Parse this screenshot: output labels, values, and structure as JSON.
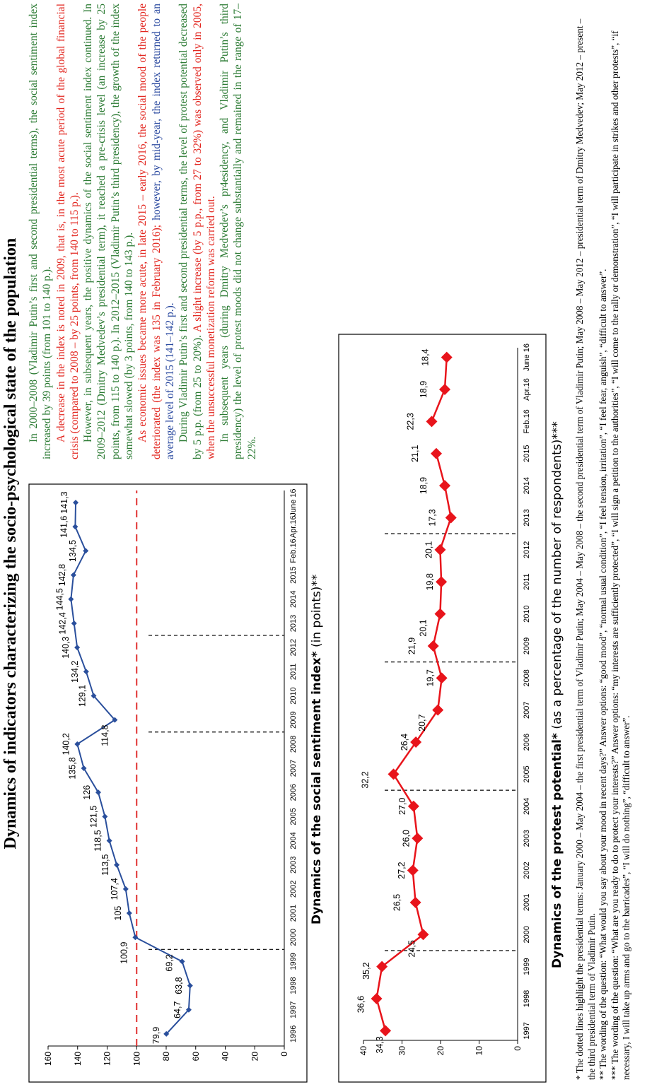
{
  "page": {
    "title": "Dynamics of indicators characterizing the socio-psychological state of the population"
  },
  "chart1_caption": {
    "bold": "Dynamics of the social sentiment index*",
    "normal": " (in points)**"
  },
  "chart2_caption": {
    "bold": "Dynamics of the protest potential*",
    "normal": " (as a percentage of the number of respondents)***"
  },
  "chart_data": [
    {
      "type": "line",
      "title": "Dynamics of the social sentiment index* (in points)**",
      "categories": [
        "1996",
        "1997",
        "1998",
        "1999",
        "2000",
        "2001",
        "2002",
        "2003",
        "2004",
        "2005",
        "2006",
        "2007",
        "2008",
        "2009",
        "2010",
        "2011",
        "2012",
        "2013",
        "2014",
        "2015",
        "Feb.16",
        "Apr.16",
        "June 16"
      ],
      "series": [
        {
          "values": [
            79.9,
            64.7,
            63.8,
            69.2,
            100.9,
            105,
            107.4,
            113.5,
            118.5,
            121.5,
            126,
            135.8,
            140.2,
            114.8,
            129.1,
            134.2,
            140.3,
            142.4,
            144.5,
            142.8,
            134.5,
            141.6,
            141.3
          ]
        }
      ],
      "value_labels": [
        "79,9",
        "64,7",
        "63,8",
        "69,2",
        "100,9",
        "105",
        "107,4",
        "113,5",
        "118,5",
        "121,5",
        "126",
        "135,8",
        "140,2",
        "114,8",
        "129,1",
        "134,2",
        "140,3",
        "142,4",
        "144,5",
        "142,8",
        "134,5",
        "141,6",
        "141,3"
      ],
      "yticks": [
        "0",
        "20",
        "40",
        "60",
        "80",
        "100",
        "120",
        "140",
        "160"
      ],
      "ylim": [
        0,
        160
      ],
      "reference_line": 100,
      "dotted_after": [
        "1999",
        "2008",
        "2012"
      ],
      "colors": {
        "line": "#2a4f9c",
        "reference": "#e03030"
      }
    },
    {
      "type": "line",
      "title": "Dynamics of the protest potential* (as a percentage of the number of respondents)***",
      "categories": [
        "1997",
        "1998",
        "1999",
        "2000",
        "2001",
        "2002",
        "2003",
        "2004",
        "2005",
        "2006",
        "2007",
        "2008",
        "2009",
        "2010",
        "2011",
        "2012",
        "2013",
        "2014",
        "2015",
        "Feb.16",
        "Apr.16",
        "June 16"
      ],
      "series": [
        {
          "values": [
            34.3,
            36.6,
            35.2,
            24.5,
            26.5,
            27.2,
            26.0,
            27.0,
            32.2,
            26.4,
            20.7,
            19.7,
            21.9,
            20.1,
            19.8,
            20.1,
            17.3,
            18.9,
            21.1,
            22.3,
            18.9,
            18.4
          ]
        }
      ],
      "value_labels": [
        "34,3",
        "36,6",
        "35,2",
        "24,5",
        "26,5",
        "27,2",
        "26,0",
        "27,0",
        "32,2",
        "26,4",
        "20,7",
        "19,7",
        "21,9",
        "20,1",
        "19,8",
        "20,1",
        "17,3",
        "18,9",
        "21,1",
        "22,3",
        "18,9",
        "18,4"
      ],
      "yticks": [
        "0",
        "10",
        "20",
        "30",
        "40"
      ],
      "ylim": [
        0,
        40
      ],
      "dotted_after": [
        "1999",
        "2004",
        "2008",
        "2012"
      ],
      "gap_before": "Feb.16",
      "colors": {
        "line": "#e8141b"
      }
    }
  ],
  "text": {
    "p1": "In 2000–2008 (Vladimir Putin’s first and second presidential terms), the social sentiment index increased by 39 points (from 101 to 140 p.).",
    "p2": "A decrease in the index is noted in 2009, that is, in the most acute period of the global financial crisis (compared to 2008 – by 25 points, from 140 to 115 p.).",
    "p3": "However, in subsequent years, the positive dynamics of the social sentiment index continued. In 2009–2012 (Dmitry Medvedev’s presidential term), it reached a pre-crisis level (an increase by 25 points, from 115 to 140 p.). In 2012–2015 (Vladimir Putin’s third presidency), the growth of the index somewhat slowed (by 3 points, from 140 to 143 p.).",
    "p4_red": "As economic issues became more acute, in late 2015 – early 2016, the social mood of the people deteriorated (the index was 135 in February 2016);",
    "p4_blue": " however, by mid-year, the index returned to an average level of 2015 (141–142 p.).",
    "p5_green": "During Vladimir Putin’s first and second presidential terms, the level of protest potential decreased by 5 p.p. (from 25 to 20%).",
    "p5_red": " A slight increase (by 5 p.p., from 27 to 32%) was observed only in 2005, when the unsuccessful monetization reform was carried out.",
    "p6": "In subsequent years (during Dmitry Medvedev’s pr4esidency, and Vladimir Putin’s third presidency) the level of protest moods did not change substantially and remained in the range of 17–22%."
  },
  "notes": {
    "n1": "* The dotted lines highlight the presidential terms: January 2000 – May 2004 – the first presidential term of Vladimir Putin; May 2004 – May 2008 – the second presidential term of Vladimir Putin; May 2008 – May 2012 – presidential term of Dmitry Medvedev; May 2012 – present – the third presidential term of Vladimir Putin.",
    "n2": "** The wording of the question: “What would you say about your mood in recent days?” Answer options: “good mood”, “normal usual condition”, “I feel tension, irritation”, “I feel fear, anguish”, “difficult to answer”.",
    "n3": "*** The wording of the question: “What are you ready to do to protect your interests?” Answer options: “my interests are sufficiently protected”, “I will sign a petition to the authorities”, “I will come to the rally or demonstration”, “I will participate in strikes and other protests”, “if necessary, I will take up arms and go to the barricades”, “I will do nothing”, “difficult to answer”."
  }
}
